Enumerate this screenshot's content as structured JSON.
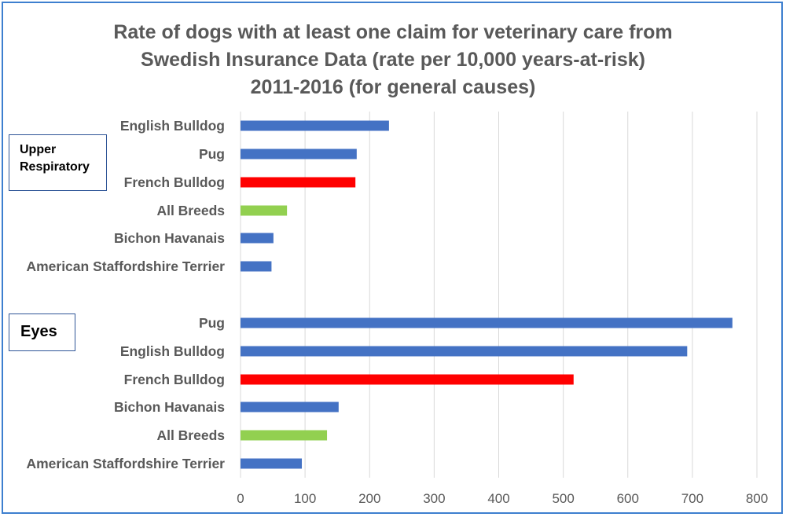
{
  "chart_data": {
    "type": "bar",
    "orientation": "horizontal",
    "title": [
      "Rate of dogs with at least one claim for veterinary care from",
      "Swedish Insurance Data (rate per 10,000 years-at-risk)",
      "2011-2016 (for general causes)"
    ],
    "xlim": [
      0,
      800
    ],
    "xticks": [
      0,
      100,
      200,
      300,
      400,
      500,
      600,
      700,
      800
    ],
    "grid": true,
    "colors": {
      "default": "#4472c4",
      "french_bulldog": "#ff0000",
      "all_breeds": "#92d050"
    },
    "groups": [
      {
        "label": [
          "Upper",
          "Respiratory"
        ],
        "categories": [
          "English Bulldog",
          "Pug",
          "French Bulldog",
          "All Breeds",
          "Bichon Havanais",
          "American Staffordshire Terrier"
        ],
        "values": [
          230,
          180,
          178,
          72,
          51,
          48
        ],
        "bar_colors": [
          "#4472c4",
          "#4472c4",
          "#ff0000",
          "#92d050",
          "#4472c4",
          "#4472c4"
        ]
      },
      {
        "label": [
          "Eyes"
        ],
        "categories": [
          "Pug",
          "English Bulldog",
          "French Bulldog",
          "Bichon Havanais",
          "All Breeds",
          "American Staffordshire Terrier"
        ],
        "values": [
          762,
          692,
          516,
          152,
          134,
          95
        ],
        "bar_colors": [
          "#4472c4",
          "#4472c4",
          "#ff0000",
          "#4472c4",
          "#92d050",
          "#4472c4"
        ]
      }
    ]
  }
}
